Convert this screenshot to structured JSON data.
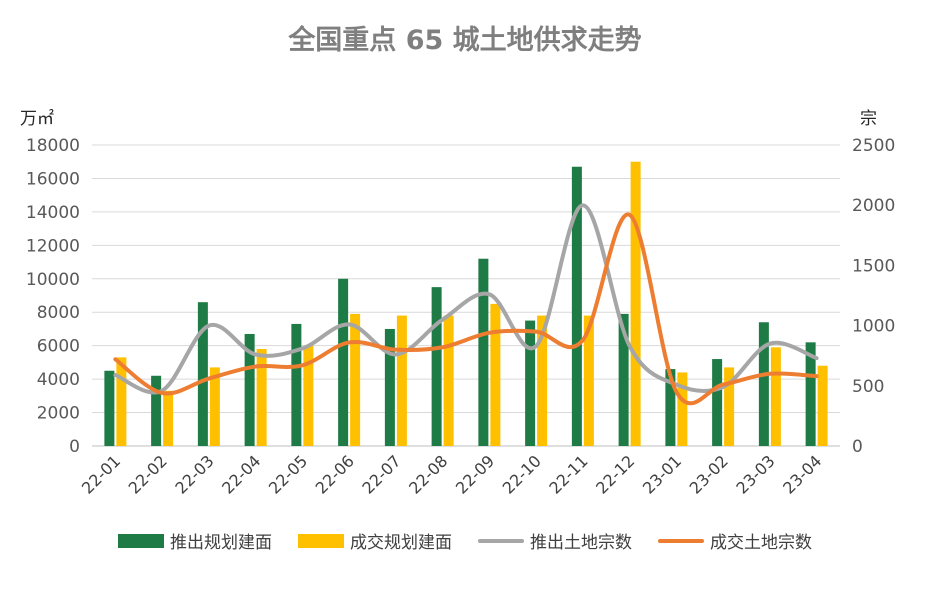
{
  "chart_data": {
    "type": "bar",
    "title": "全国重点 65 城土地供求走势",
    "ylabel_left": "万㎡",
    "ylabel_right": "宗",
    "ylim_left": [
      0,
      18000
    ],
    "ylim_right": [
      0,
      2500
    ],
    "yticks_left": [
      "0",
      "2000",
      "4000",
      "6000",
      "8000",
      "10000",
      "12000",
      "14000",
      "16000",
      "18000"
    ],
    "yticks_right": [
      "0",
      "500",
      "1000",
      "1500",
      "2000",
      "2500"
    ],
    "categories": [
      "22-01",
      "22-02",
      "22-03",
      "22-04",
      "22-05",
      "22-06",
      "22-07",
      "22-08",
      "22-09",
      "22-10",
      "22-11",
      "22-12",
      "23-01",
      "23-02",
      "23-03",
      "23-04"
    ],
    "grid": true,
    "legend_position": "bottom",
    "series": [
      {
        "name": "推出规划建面",
        "kind": "bar",
        "axis": "left",
        "color": "#1e7b45",
        "values": [
          4500,
          4200,
          8600,
          6700,
          7300,
          10000,
          7000,
          9500,
          11200,
          7500,
          16700,
          7900,
          4600,
          5200,
          7400,
          6200
        ]
      },
      {
        "name": "成交规划建面",
        "kind": "bar",
        "axis": "left",
        "color": "#ffc000",
        "values": [
          5300,
          3300,
          4700,
          5800,
          6000,
          7900,
          7800,
          7800,
          8500,
          7800,
          7800,
          17000,
          4400,
          4700,
          5900,
          4800
        ]
      },
      {
        "name": "推出土地宗数",
        "kind": "line",
        "axis": "right",
        "color": "#a6a6a6",
        "values": [
          590,
          460,
          1000,
          760,
          810,
          1010,
          760,
          1050,
          1260,
          830,
          2000,
          830,
          510,
          490,
          850,
          730
        ]
      },
      {
        "name": "成交土地宗数",
        "kind": "line",
        "axis": "right",
        "color": "#ed7d31",
        "values": [
          720,
          440,
          560,
          660,
          670,
          860,
          800,
          820,
          940,
          950,
          880,
          1920,
          450,
          510,
          600,
          580
        ]
      }
    ]
  }
}
